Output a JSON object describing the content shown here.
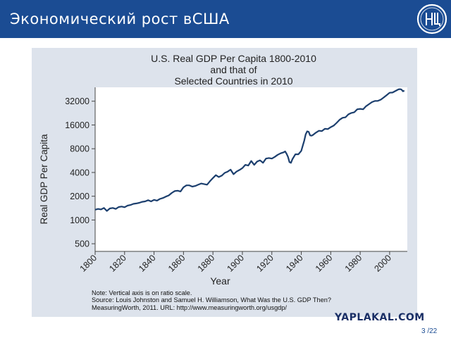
{
  "slide": {
    "title": "Экономический рост вСША",
    "logo_text": "ВШЭ",
    "page_number": "3 /22",
    "watermark": "YAPLAKAL.COM",
    "header_color": "#1b4c93"
  },
  "notes": [
    "Note: Vertical axis is on ratio scale.",
    "Source: Louis Johnston and Samuel H. Williamson, What Was the U.S. GDP Then?",
    "MeasuringWorth, 2011. URL: http://www.measuringworth.org/usgdp/"
  ],
  "chart_data": {
    "type": "line",
    "title_lines": [
      "U.S. Real GDP Per Capita 1800-2010",
      "and that of",
      "Selected Countries in 2010"
    ],
    "xlabel": "Year",
    "ylabel": "Real GDP Per Capita",
    "xlim": [
      1800,
      2012
    ],
    "ylim": [
      400,
      48000
    ],
    "yscale": "log",
    "xticks": [
      1800,
      1820,
      1840,
      1860,
      1880,
      1900,
      1920,
      1940,
      1960,
      1980,
      2000
    ],
    "yticks": [
      500,
      1000,
      2000,
      4000,
      8000,
      16000,
      32000
    ],
    "grid": false,
    "line_color": "#1c3f6e",
    "series": [
      {
        "x": [
          1800,
          1802,
          1804,
          1806,
          1808,
          1810,
          1812,
          1814,
          1816,
          1818,
          1820,
          1822,
          1824,
          1826,
          1828,
          1830,
          1832,
          1834,
          1836,
          1838,
          1840,
          1842,
          1844,
          1846,
          1848,
          1850,
          1852,
          1854,
          1856,
          1858,
          1860,
          1862,
          1864,
          1866,
          1868,
          1870,
          1872,
          1874,
          1876,
          1878,
          1880,
          1882,
          1884,
          1886,
          1888,
          1890,
          1892,
          1894,
          1896,
          1898,
          1900,
          1902,
          1904,
          1906,
          1908,
          1910,
          1912,
          1914,
          1916,
          1918,
          1920,
          1922,
          1924,
          1926,
          1928,
          1929,
          1930,
          1931,
          1932,
          1933,
          1934,
          1936,
          1938,
          1940,
          1941,
          1942,
          1943,
          1944,
          1945,
          1946,
          1947,
          1948,
          1950,
          1952,
          1954,
          1956,
          1958,
          1960,
          1962,
          1964,
          1966,
          1968,
          1970,
          1972,
          1974,
          1976,
          1978,
          1980,
          1982,
          1984,
          1986,
          1988,
          1990,
          1992,
          1994,
          1996,
          1998,
          2000,
          2002,
          2004,
          2006,
          2007,
          2008,
          2009,
          2010
        ],
        "y": [
          1350,
          1380,
          1360,
          1420,
          1300,
          1400,
          1420,
          1380,
          1460,
          1480,
          1450,
          1520,
          1550,
          1600,
          1620,
          1650,
          1700,
          1720,
          1780,
          1720,
          1800,
          1760,
          1850,
          1900,
          1980,
          2050,
          2200,
          2320,
          2350,
          2300,
          2600,
          2750,
          2750,
          2650,
          2700,
          2800,
          2900,
          2850,
          2800,
          3100,
          3400,
          3700,
          3500,
          3650,
          3950,
          4100,
          4350,
          3800,
          4100,
          4300,
          4550,
          5000,
          4900,
          5600,
          5000,
          5500,
          5700,
          5300,
          6000,
          6100,
          6000,
          6300,
          6700,
          7000,
          7200,
          7400,
          6900,
          6300,
          5400,
          5300,
          5900,
          6800,
          6800,
          7500,
          8700,
          10100,
          12200,
          13300,
          13100,
          11800,
          11700,
          12000,
          12800,
          13500,
          13400,
          14300,
          14200,
          15000,
          15700,
          17000,
          18600,
          19700,
          20000,
          21800,
          22700,
          23200,
          25300,
          25600,
          25300,
          27700,
          29400,
          31200,
          32200,
          32300,
          33500,
          35700,
          38200,
          41000,
          41200,
          43200,
          45200,
          45500,
          45000,
          42800,
          43500
        ]
      }
    ]
  }
}
